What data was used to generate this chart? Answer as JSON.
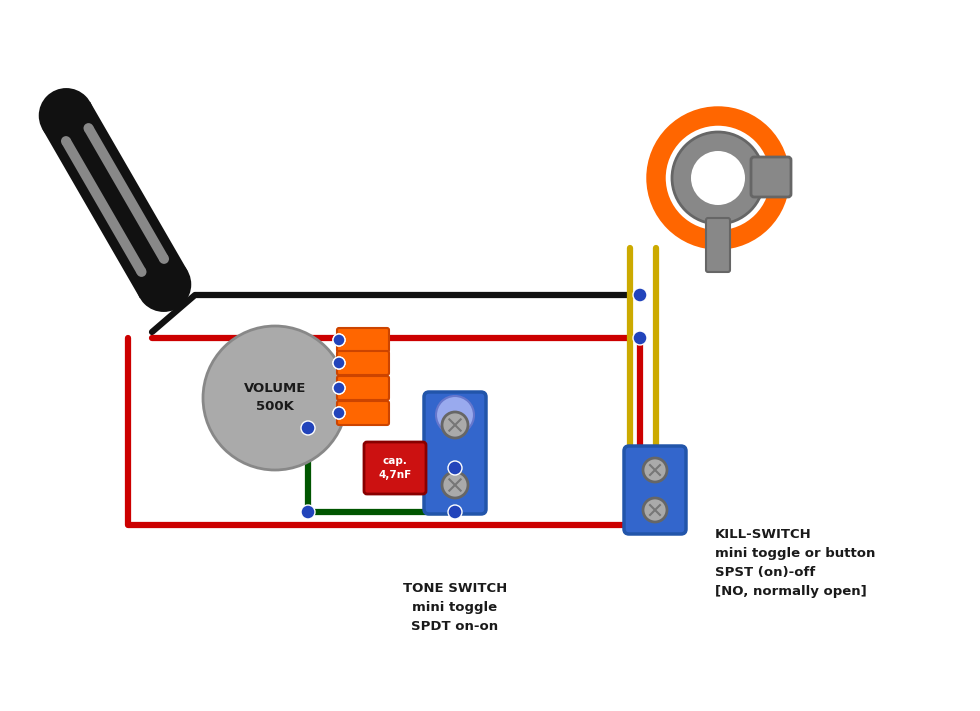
{
  "bg": "#ffffff",
  "pickup_fc": "#111111",
  "pickup_stripe": "#888888",
  "pot_fc": "#aaaaaa",
  "pot_ec": "#888888",
  "lug_fc": "#ff6600",
  "lug_ec": "#cc4400",
  "wire_red": "#cc0000",
  "wire_black": "#111111",
  "wire_green": "#005500",
  "wire_yellow": "#ccaa00",
  "node_fc": "#2244bb",
  "cap_fc": "#cc1111",
  "cap_ec": "#880000",
  "cap_text": "#ffffff",
  "sw_fc": "#3366cc",
  "sw_ec": "#2255aa",
  "sw_screw": "#aaaaaa",
  "jack_ring": "#ff6600",
  "jack_body": "#888888",
  "jack_ec": "#666666",
  "txt": "#1a1a1a",
  "vol_label": "VOLUME\n500K",
  "cap_label": "cap.\n4,7nF",
  "tone_label": "TONE SWITCH\nmini toggle\nSPDT on-on",
  "kill_label": "KILL-SWITCH\nmini toggle or button\nSPST (on)-off\n[NO, normally open]"
}
